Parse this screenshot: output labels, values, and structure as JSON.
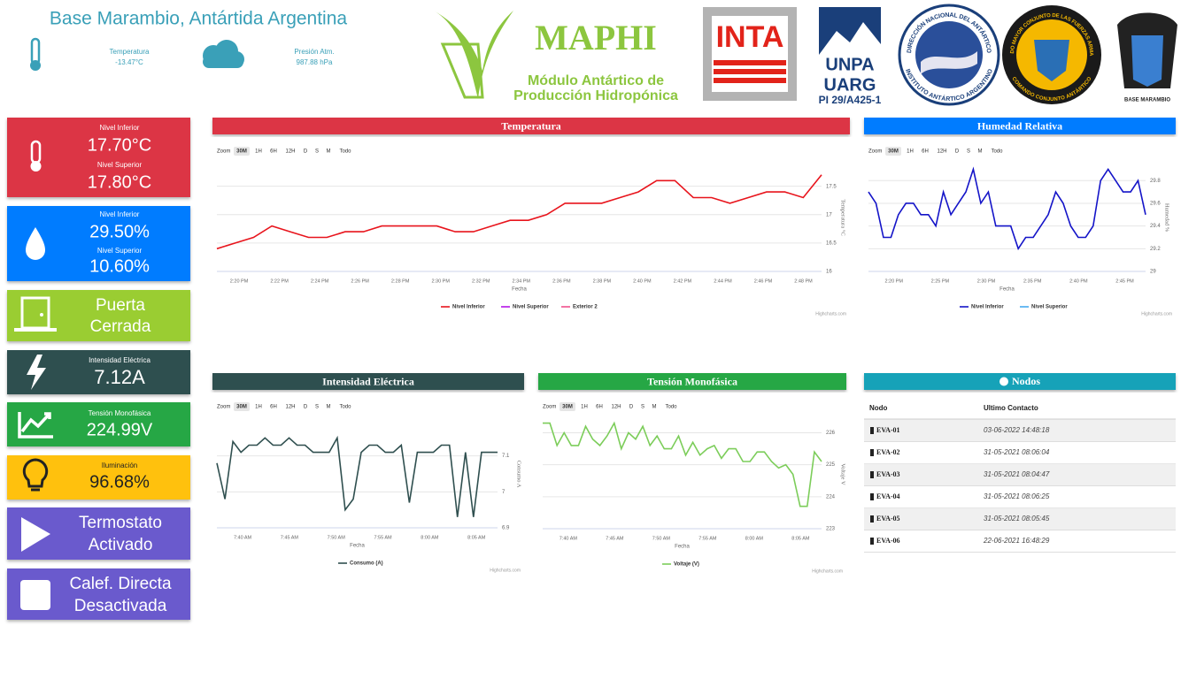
{
  "header": {
    "title": "Base Marambio, Antártida Argentina",
    "weather": [
      {
        "label": "Temperatura",
        "value": "-13.47°C"
      },
      {
        "label": "Presión Atm.",
        "value": "987.88 hPa"
      }
    ]
  },
  "logos": {
    "maphi": "MAPHI",
    "maphi_sub": [
      "Módulo Antártico de",
      "Producción Hidropónica"
    ],
    "inta": "INTA",
    "unpa": [
      "UNPA",
      "UARG",
      "PI 29/A425-1"
    ],
    "dna": [
      "DIRECCIÓN NACIONAL DEL ANTÁRTICO",
      "INSTITUTO ANTÁRTICO ARGENTINO"
    ],
    "cca": [
      "ESTADO MAYOR CONJUNTO DE LAS FUERZAS ARMADAS",
      "COMANDO CONJUNTO ANTÁRTICO"
    ],
    "marambio": "BASE MARAMBIO"
  },
  "cards": [
    {
      "items": [
        {
          "label": "Nivel Inferior",
          "value": "17.70°C"
        },
        {
          "label": "Nivel Superior",
          "value": "17.80°C"
        }
      ]
    },
    {
      "items": [
        {
          "label": "Nivel Inferior",
          "value": "29.50%"
        },
        {
          "label": "Nivel Superior",
          "value": "10.60%"
        }
      ]
    },
    {
      "lines": [
        "Puerta",
        "Cerrada"
      ]
    },
    {
      "items": [
        {
          "label": "Intensidad Eléctrica",
          "value": "7.12A"
        }
      ]
    },
    {
      "items": [
        {
          "label": "Tensión Monofásica",
          "value": "224.99V"
        }
      ]
    },
    {
      "items": [
        {
          "label": "Iluminación",
          "value": "96.68%"
        }
      ]
    },
    {
      "lines": [
        "Termostato",
        "Activado"
      ]
    },
    {
      "lines": [
        "Calef. Directa",
        "Desactivada"
      ]
    }
  ],
  "zoom": {
    "label": "Zoom",
    "buttons": [
      "30M",
      "1H",
      "6H",
      "12H",
      "D",
      "S",
      "M",
      "Todo"
    ]
  },
  "chart_data": [
    {
      "type": "line",
      "title": "Temperatura",
      "color": "#dc3545",
      "xlabel": "Fecha",
      "ylabel": "Temperatura °C",
      "credits": "Highcharts.com",
      "xticks": [
        "2:20 PM",
        "2:22 PM",
        "2:24 PM",
        "2:26 PM",
        "2:28 PM",
        "2:30 PM",
        "2:32 PM",
        "2:34 PM",
        "2:36 PM",
        "2:38 PM",
        "2:40 PM",
        "2:42 PM",
        "2:44 PM",
        "2:46 PM",
        "2:48 PM"
      ],
      "ylim": [
        16,
        17.9
      ],
      "yticks": [
        16,
        16.5,
        17,
        17.5
      ],
      "grid": true,
      "series": [
        {
          "name": "Nivel Inferior",
          "color": "#e8141c",
          "values": [
            16.4,
            16.5,
            16.6,
            16.8,
            16.7,
            16.6,
            16.6,
            16.7,
            16.7,
            16.8,
            16.8,
            16.8,
            16.8,
            16.7,
            16.7,
            16.8,
            16.9,
            16.9,
            17.0,
            17.2,
            17.2,
            17.2,
            17.3,
            17.4,
            17.6,
            17.6,
            17.3,
            17.3,
            17.2,
            17.3,
            17.4,
            17.4,
            17.3,
            17.7
          ]
        },
        {
          "name": "Nivel Superior",
          "color": "#b414e8",
          "values": []
        },
        {
          "name": "Exterior 2",
          "color": "#f0508c",
          "values": []
        }
      ]
    },
    {
      "type": "line",
      "title": "Humedad Relativa",
      "color": "#007bff",
      "xlabel": "Fecha",
      "ylabel": "Humedad %",
      "credits": "Highcharts.com",
      "xticks": [
        "2:20 PM",
        "2:25 PM",
        "2:30 PM",
        "2:35 PM",
        "2:40 PM",
        "2:45 PM"
      ],
      "ylim": [
        29,
        29.95
      ],
      "yticks": [
        29,
        29.2,
        29.4,
        29.6,
        29.8
      ],
      "grid": true,
      "series": [
        {
          "name": "Nivel Inferior",
          "color": "#1414c8",
          "values": [
            29.7,
            29.6,
            29.3,
            29.3,
            29.5,
            29.6,
            29.6,
            29.5,
            29.5,
            29.4,
            29.7,
            29.5,
            29.6,
            29.7,
            29.9,
            29.6,
            29.7,
            29.4,
            29.4,
            29.4,
            29.2,
            29.3,
            29.3,
            29.4,
            29.5,
            29.7,
            29.6,
            29.4,
            29.3,
            29.3,
            29.4,
            29.8,
            29.9,
            29.8,
            29.7,
            29.7,
            29.8,
            29.5
          ]
        },
        {
          "name": "Nivel Superior",
          "color": "#46aaf0",
          "values": []
        }
      ]
    },
    {
      "type": "line",
      "title": "Intensidad Eléctrica",
      "color": "#2f4f4f",
      "xlabel": "Fecha",
      "ylabel": "Consumo A",
      "credits": "Highcharts.com",
      "xticks": [
        "7:40 AM",
        "7:45 AM",
        "7:50 AM",
        "7:55 AM",
        "8:00 AM",
        "8:05 AM"
      ],
      "ylim": [
        6.9,
        7.2
      ],
      "yticks": [
        6.9,
        7,
        7.1
      ],
      "grid": true,
      "series": [
        {
          "name": "Consumo (A)",
          "color": "#2f4f4f",
          "values": [
            7.08,
            6.98,
            7.14,
            7.11,
            7.13,
            7.13,
            7.15,
            7.13,
            7.13,
            7.15,
            7.13,
            7.13,
            7.11,
            7.11,
            7.11,
            7.15,
            6.95,
            6.98,
            7.11,
            7.13,
            7.13,
            7.11,
            7.11,
            7.13,
            6.97,
            7.11,
            7.11,
            7.11,
            7.13,
            7.13,
            6.93,
            7.11,
            6.93,
            7.11,
            7.11,
            7.11
          ]
        }
      ]
    },
    {
      "type": "line",
      "title": "Tensión Monofásica",
      "color": "#28a745",
      "xlabel": "Fecha",
      "ylabel": "Voltaje V",
      "credits": "Highcharts.com",
      "xticks": [
        "7:40 AM",
        "7:45 AM",
        "7:50 AM",
        "7:55 AM",
        "8:00 AM",
        "8:05 AM"
      ],
      "ylim": [
        223,
        226.4
      ],
      "yticks": [
        223,
        224,
        225,
        226
      ],
      "grid": true,
      "series": [
        {
          "name": "Voltaje (V)",
          "color": "#7ccd5a",
          "values": [
            226.3,
            226.3,
            225.6,
            226.0,
            225.6,
            225.6,
            226.2,
            225.8,
            225.6,
            225.9,
            226.3,
            225.5,
            226.0,
            225.8,
            226.2,
            225.6,
            225.9,
            225.5,
            225.5,
            225.9,
            225.3,
            225.7,
            225.3,
            225.5,
            225.6,
            225.2,
            225.5,
            225.5,
            225.1,
            225.1,
            225.4,
            225.4,
            225.1,
            224.9,
            225.0,
            224.7,
            223.7,
            223.7,
            225.4,
            225.1
          ]
        }
      ]
    }
  ],
  "nodes": {
    "title": "Nodos",
    "columns": [
      "Nodo",
      "Ultimo Contacto"
    ],
    "rows": [
      [
        "EVA-01",
        "03-06-2022 14:48:18"
      ],
      [
        "EVA-02",
        "31-05-2021 08:06:04"
      ],
      [
        "EVA-03",
        "31-05-2021 08:04:47"
      ],
      [
        "EVA-04",
        "31-05-2021 08:06:25"
      ],
      [
        "EVA-05",
        "31-05-2021 08:05:45"
      ],
      [
        "EVA-06",
        "22-06-2021 16:48:29"
      ]
    ]
  }
}
